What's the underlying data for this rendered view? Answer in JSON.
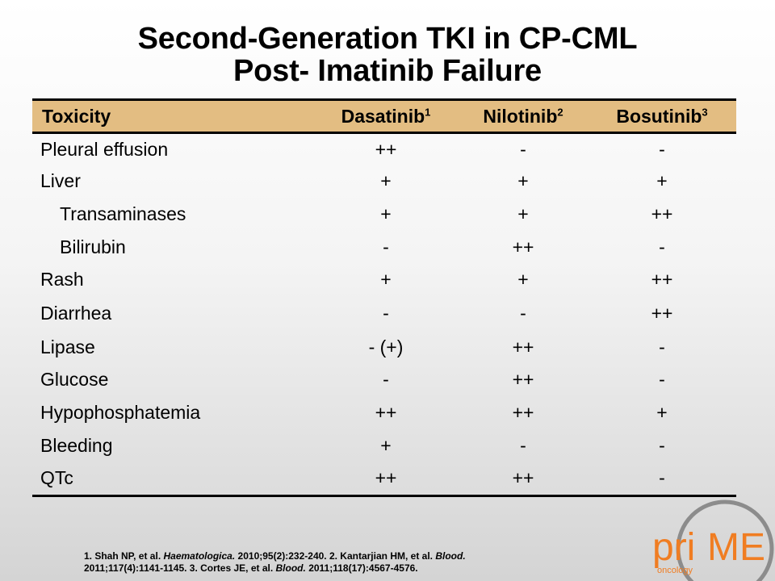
{
  "title": {
    "line1": "Second-Generation TKI in CP-CML",
    "line2": "Post- Imatinib Failure"
  },
  "table": {
    "headers": [
      {
        "label": "Toxicity",
        "sup": ""
      },
      {
        "label": "Dasatinib",
        "sup": "1"
      },
      {
        "label": "Nilotinib",
        "sup": "2"
      },
      {
        "label": "Bosutinib",
        "sup": "3"
      }
    ],
    "rows": [
      {
        "label": "Pleural effusion",
        "indent": false,
        "values": [
          "++",
          "-",
          "-"
        ]
      },
      {
        "label": "Liver",
        "indent": false,
        "values": [
          "+",
          "+",
          "+"
        ]
      },
      {
        "label": "Transaminases",
        "indent": true,
        "values": [
          "+",
          "+",
          "++"
        ]
      },
      {
        "label": "Bilirubin",
        "indent": true,
        "values": [
          "-",
          "++",
          "-"
        ]
      },
      {
        "label": "Rash",
        "indent": false,
        "values": [
          "+",
          "+",
          "++"
        ]
      },
      {
        "label": "Diarrhea",
        "indent": false,
        "values": [
          "-",
          "-",
          "++"
        ]
      },
      {
        "label": "Lipase",
        "indent": false,
        "values": [
          "- (+)",
          "++",
          "-"
        ]
      },
      {
        "label": "Glucose",
        "indent": false,
        "values": [
          "-",
          "++",
          "-"
        ]
      },
      {
        "label": "Hypophosphatemia",
        "indent": false,
        "values": [
          "++",
          "++",
          "+"
        ]
      },
      {
        "label": "Bleeding",
        "indent": false,
        "values": [
          "+",
          "-",
          "-"
        ]
      },
      {
        "label": "QTc",
        "indent": false,
        "values": [
          "++",
          "++",
          "-"
        ]
      }
    ]
  },
  "references": {
    "r1_a": "1. Shah NP, et al.",
    "r1_journal": "Haematologica.",
    "r1_b": "2010;95(2):232-240. 2. Kantarjian HM, et al.",
    "r2_journal": "Blood.",
    "r2_b": "2011;117(4):1141-1145. 3. Cortes JE, et al.",
    "r3_journal": "Blood.",
    "r3_b": "2011;118(17):4567-4576."
  },
  "logo": {
    "text_pri": "pri",
    "text_me": "ME",
    "sub": "oncology"
  },
  "colors": {
    "header_bg": "#e3bd82",
    "logo_orange": "#f07d22",
    "logo_gray": "#8c8c8c"
  }
}
